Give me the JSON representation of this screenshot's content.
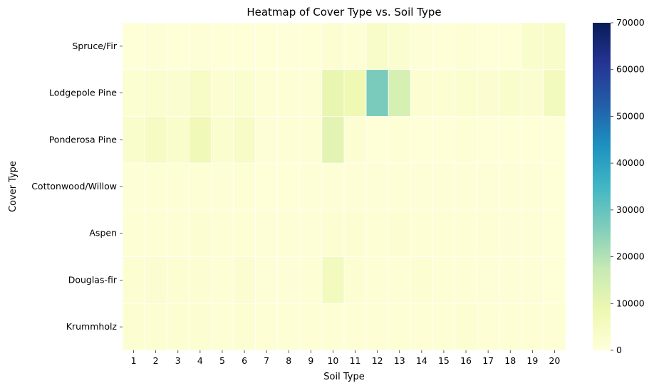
{
  "chart_data": {
    "type": "heatmap",
    "title": "Heatmap of Cover Type vs. Soil Type",
    "xlabel": "Soil Type",
    "ylabel": "Cover Type",
    "x_categories": [
      "1",
      "2",
      "3",
      "4",
      "5",
      "6",
      "7",
      "8",
      "9",
      "10",
      "11",
      "12",
      "13",
      "14",
      "15",
      "16",
      "17",
      "18",
      "19",
      "20"
    ],
    "y_categories": [
      "Spruce/Fir",
      "Lodgepole Pine",
      "Ponderosa Pine",
      "Cottonwood/Willow",
      "Aspen",
      "Douglas-fir",
      "Krummholz"
    ],
    "values": [
      [
        600,
        800,
        500,
        800,
        500,
        500,
        500,
        300,
        500,
        1500,
        1200,
        3500,
        2500,
        800,
        500,
        1000,
        500,
        500,
        3000,
        3500
      ],
      [
        1800,
        2500,
        2200,
        4000,
        1500,
        2500,
        1000,
        1000,
        1000,
        10000,
        8000,
        27000,
        14000,
        1500,
        1500,
        2500,
        2000,
        3000,
        2000,
        6000
      ],
      [
        3000,
        5000,
        3000,
        7000,
        2500,
        4000,
        800,
        1000,
        1000,
        11000,
        1500,
        500,
        1000,
        500,
        500,
        1000,
        500,
        500,
        500,
        500
      ],
      [
        800,
        1000,
        1200,
        1200,
        800,
        1000,
        500,
        500,
        800,
        800,
        800,
        800,
        800,
        800,
        800,
        800,
        800,
        800,
        800,
        500
      ],
      [
        1000,
        1200,
        1200,
        1500,
        1000,
        1200,
        800,
        800,
        800,
        1500,
        1500,
        1200,
        1500,
        1200,
        1000,
        1000,
        1000,
        800,
        800,
        500
      ],
      [
        1500,
        2000,
        1500,
        1500,
        1200,
        2000,
        800,
        800,
        1000,
        6000,
        1500,
        1200,
        1200,
        1500,
        1200,
        1200,
        800,
        800,
        800,
        500
      ],
      [
        1500,
        1500,
        1500,
        1500,
        1200,
        1500,
        1200,
        1200,
        1200,
        1200,
        1200,
        1200,
        1200,
        1200,
        1200,
        1500,
        1200,
        1200,
        1200,
        1000
      ]
    ],
    "colorbar": {
      "min": 0,
      "max": 70000,
      "ticks": [
        0,
        10000,
        20000,
        30000,
        40000,
        50000,
        60000,
        70000
      ],
      "tick_labels": [
        "0",
        "10000",
        "20000",
        "30000",
        "40000",
        "50000",
        "60000",
        "70000"
      ],
      "colormap": "YlGnBu"
    },
    "grid": true
  }
}
